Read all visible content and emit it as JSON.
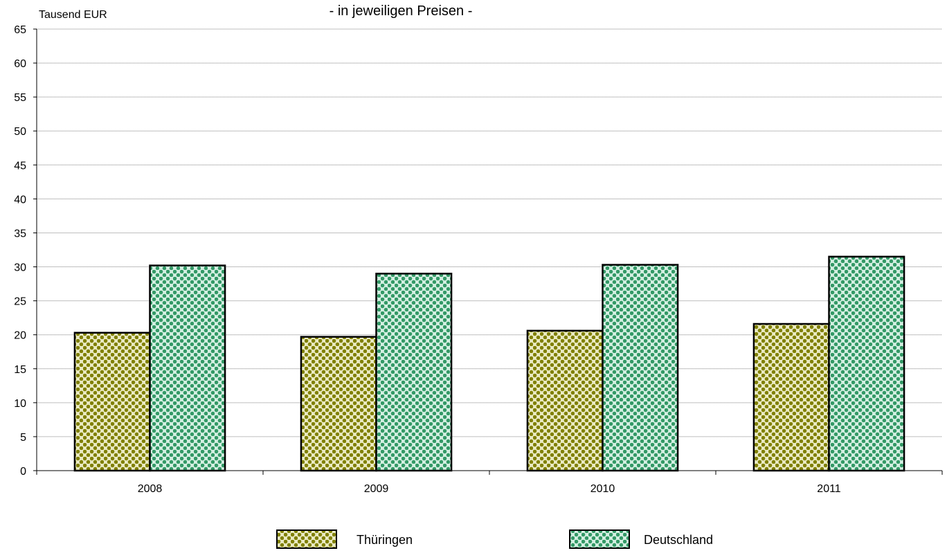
{
  "chart_data": {
    "type": "bar",
    "title": "- in jeweiligen Preisen  -",
    "ylabel": "Tausend EUR",
    "xlabel": "",
    "categories": [
      "2008",
      "2009",
      "2010",
      "2011"
    ],
    "series": [
      {
        "name": "Thüringen",
        "values": [
          20.3,
          19.7,
          20.6,
          21.6
        ],
        "color": "#808000"
      },
      {
        "name": "Deutschland",
        "values": [
          30.2,
          29.0,
          30.3,
          31.5
        ],
        "color": "#339966"
      }
    ],
    "ylim": [
      0,
      65
    ],
    "yticks": [
      0,
      5,
      10,
      15,
      20,
      25,
      30,
      35,
      40,
      45,
      50,
      55,
      60,
      65
    ],
    "grid": true,
    "legend_position": "bottom"
  }
}
